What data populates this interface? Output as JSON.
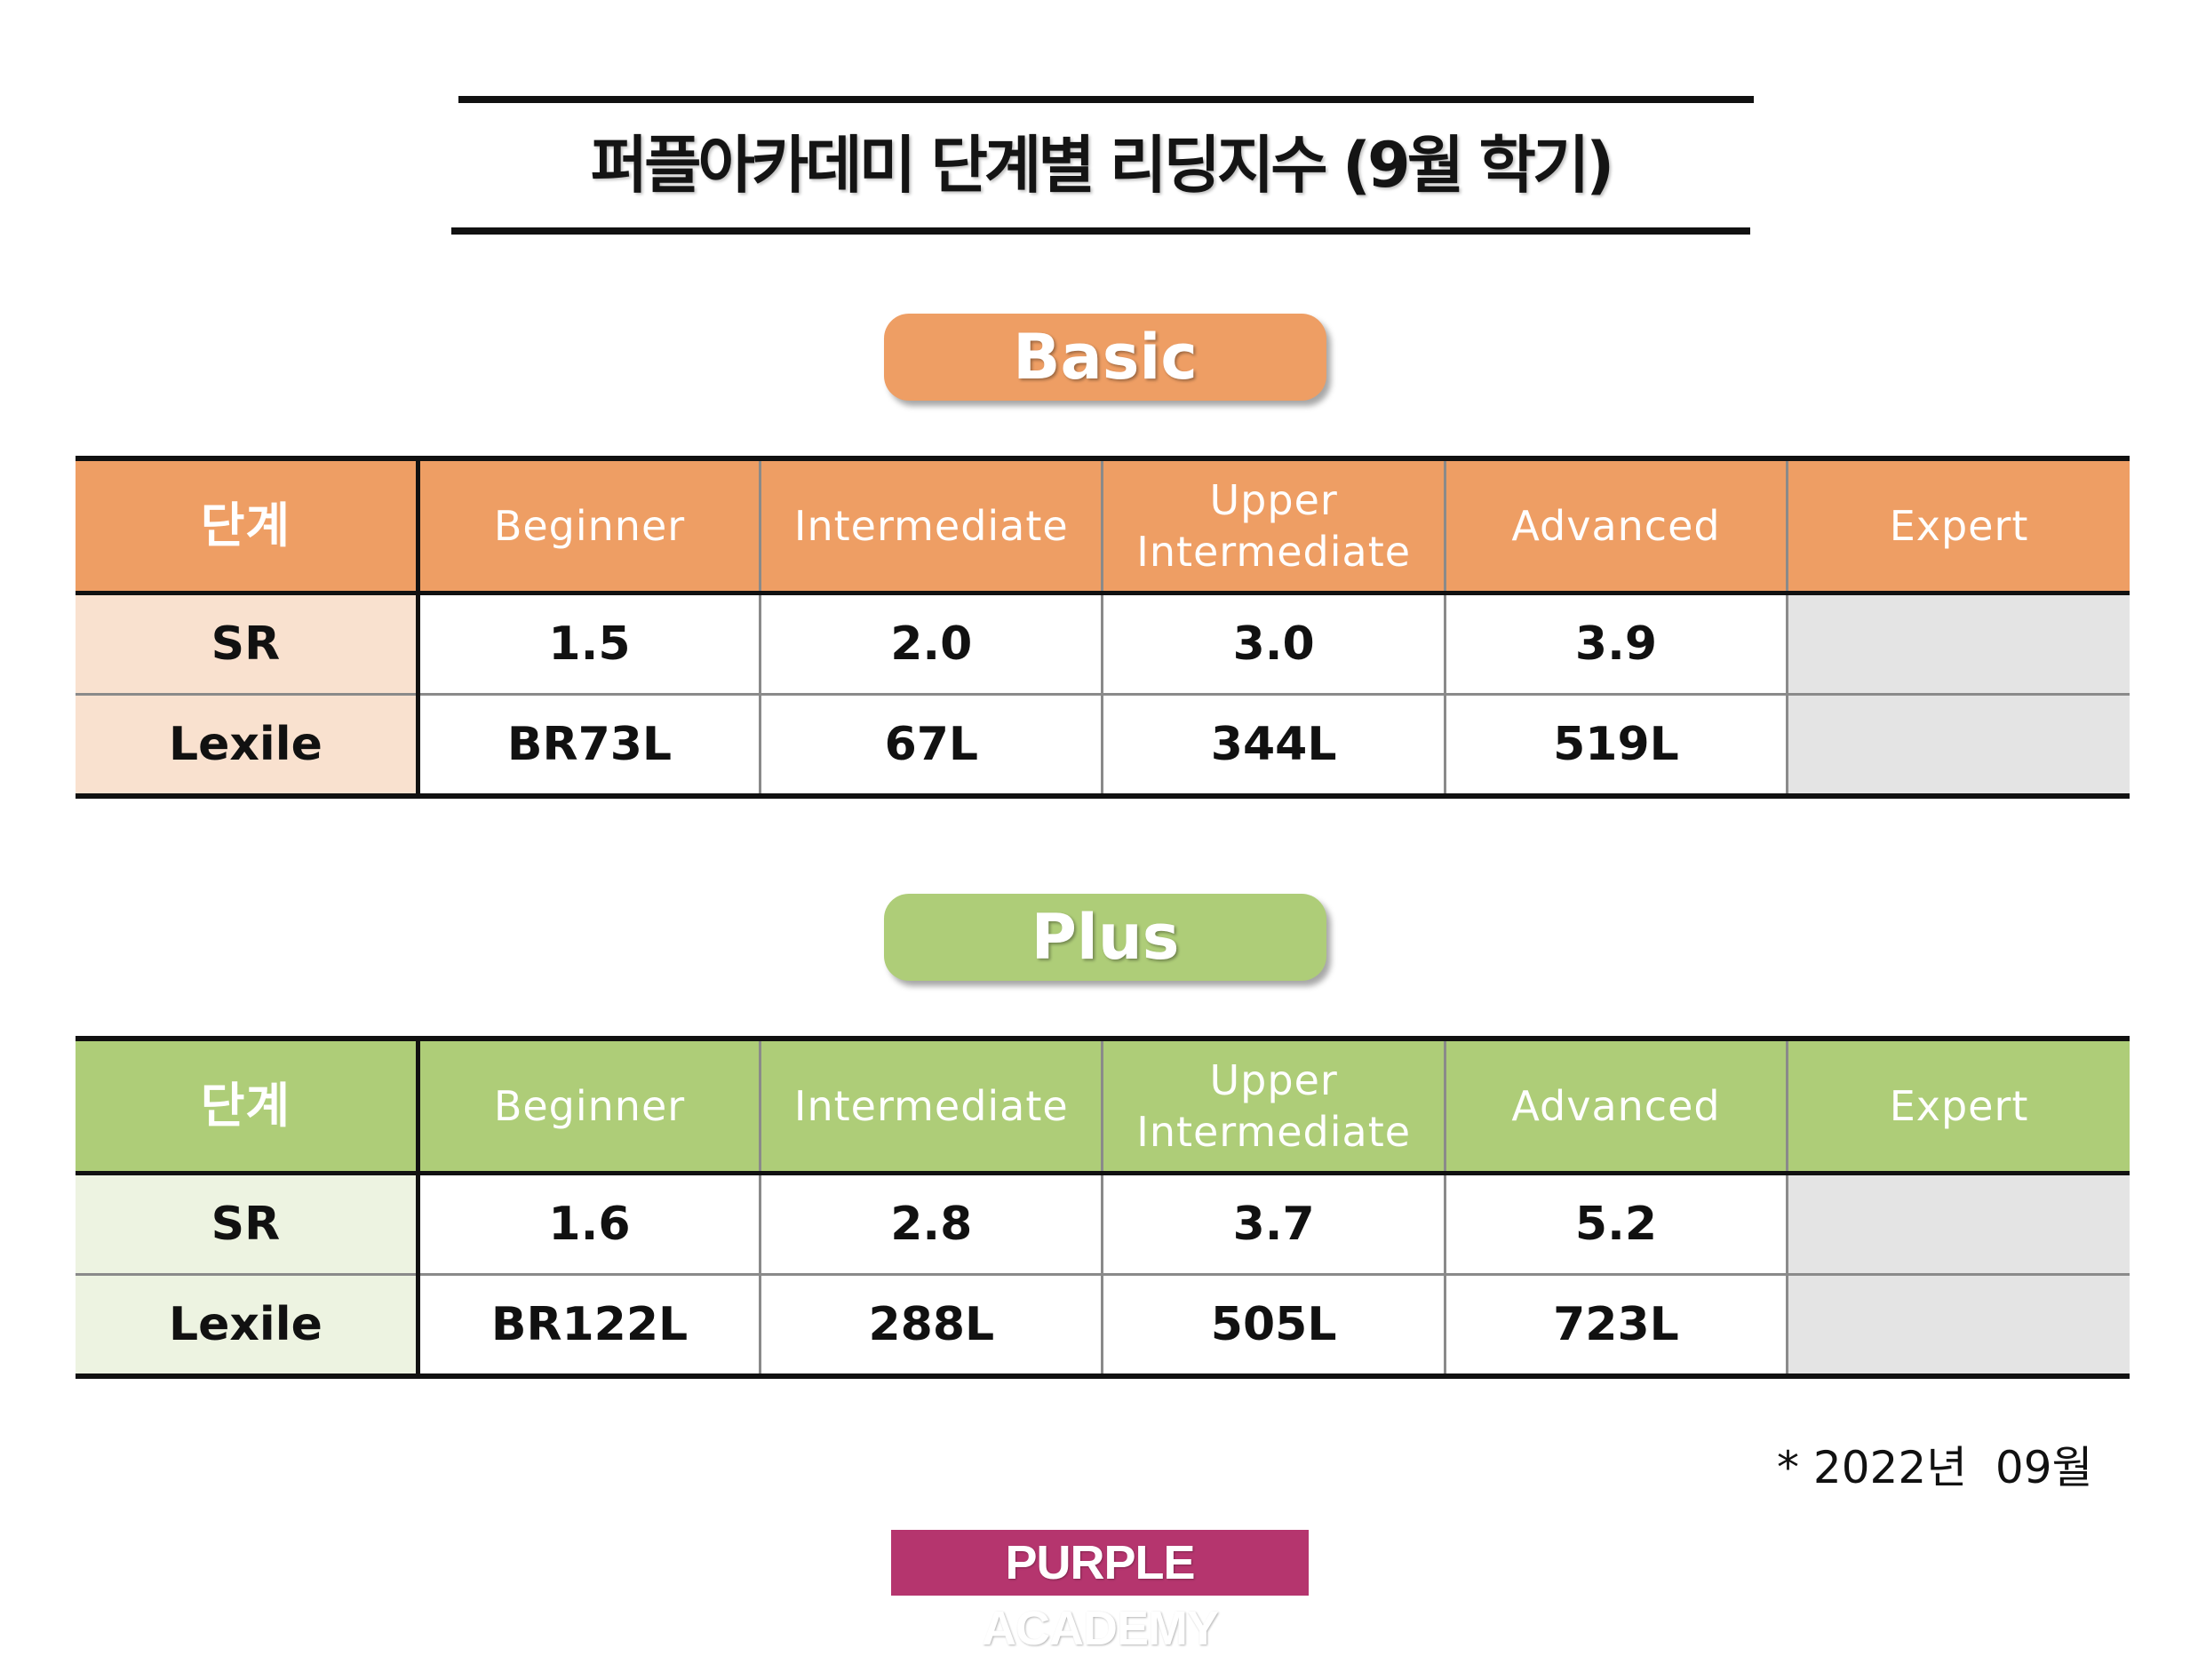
{
  "title": "퍼플아카데미 단계별 리딩지수 (9월 학기)",
  "colors": {
    "basic": "#ee9e64",
    "plus": "#aecd78",
    "logo": "#b5356e"
  },
  "sections": [
    {
      "label": "Basic",
      "header": {
        "stage": "단계",
        "levels": [
          "Beginner",
          "Intermediate",
          "Upper\nIntermediate",
          "Advanced",
          "Expert"
        ]
      },
      "rows": [
        {
          "label": "SR",
          "values": [
            "1.5",
            "2.0",
            "3.0",
            "3.9",
            ""
          ]
        },
        {
          "label": "Lexile",
          "values": [
            "BR73L",
            "67L",
            "344L",
            "519L",
            ""
          ]
        }
      ]
    },
    {
      "label": "Plus",
      "header": {
        "stage": "단계",
        "levels": [
          "Beginner",
          "Intermediate",
          "Upper\nIntermediate",
          "Advanced",
          "Expert"
        ]
      },
      "rows": [
        {
          "label": "SR",
          "values": [
            "1.6",
            "2.8",
            "3.7",
            "5.2",
            ""
          ]
        },
        {
          "label": "Lexile",
          "values": [
            "BR122L",
            "288L",
            "505L",
            "723L",
            ""
          ]
        }
      ]
    }
  ],
  "footnote": "* 2022년  09월",
  "logo": "PURPLE ACADEMY"
}
